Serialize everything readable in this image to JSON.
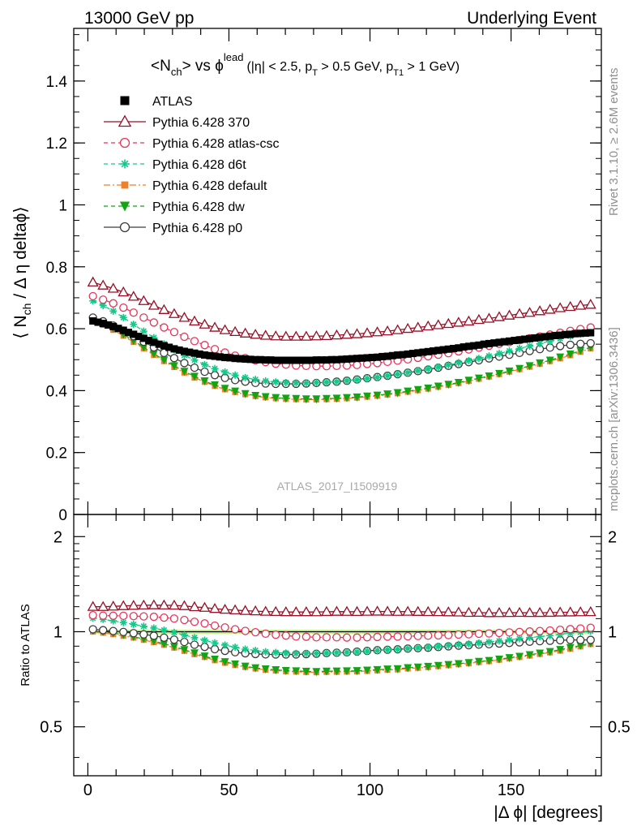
{
  "header": {
    "energy_label": "13000 GeV pp",
    "process_label": "Underlying Event"
  },
  "side_labels": {
    "rivet": "Rivet 3.1.10, ≥ 2.6M events",
    "mcplots": "mcplots.cern.ch [arXiv:1306.3436]"
  },
  "plot_title": {
    "main": "<N",
    "main_sub": "ch",
    "vs": "> vs ϕ",
    "vs_sup": "lead",
    "cuts": "(|η| < 2.5, p",
    "cuts_sub1": "T",
    "cuts_mid": " > 0.5 GeV, p",
    "cuts_sub2": "T1",
    "cuts_end": " > 1 GeV)"
  },
  "watermark": "ATLAS_2017_I1509919",
  "colors": {
    "atlas": "#000000",
    "p370": "#990e24",
    "atlas_csc": "#e8335a",
    "d6t": "#13c98a",
    "default": "#f07f2a",
    "dw": "#12a513",
    "p0": "#3c3c3c",
    "band": "#c6f58f"
  },
  "chart_data": [
    {
      "type": "scatter",
      "panel": "main",
      "ylabel": "⟨ N_ch / Δη deltaϕ⟩",
      "xlim": [
        -5,
        182
      ],
      "ylim": [
        0,
        1.57
      ],
      "yticks": [
        0,
        0.2,
        0.4,
        0.6,
        0.8,
        1,
        1.2,
        1.4
      ],
      "ytick_labels": [
        "0",
        "0.2",
        "0.4",
        "0.6",
        "0.8",
        "1",
        "1.2",
        "1.4"
      ],
      "legend_position": "top-left",
      "x_model": [
        1.8,
        5.4,
        9.0,
        12.6,
        16.2,
        19.8,
        23.4,
        27.0,
        30.6,
        34.2,
        37.8,
        41.4,
        45.0,
        48.6,
        52.2,
        55.8,
        59.4,
        63.0,
        66.6,
        70.2,
        73.8,
        77.4,
        81.0,
        84.6,
        88.2,
        91.8,
        95.4,
        99.0,
        102.6,
        106.2,
        109.8,
        113.4,
        117.0,
        120.6,
        124.2,
        127.8,
        131.4,
        135.0,
        138.6,
        142.2,
        145.8,
        149.4,
        153.0,
        156.6,
        160.2,
        163.8,
        167.4,
        171.0,
        174.6,
        178.2
      ],
      "series": [
        {
          "name": "ATLAS",
          "key": "atlas",
          "marker": "square",
          "x": [
            1.8,
            3.6,
            5.4,
            7.2,
            9.0,
            10.8,
            12.6,
            14.4,
            16.2,
            18.0,
            19.8,
            21.6,
            23.4,
            25.2,
            27.0,
            28.8,
            30.6,
            32.4,
            34.2,
            36.0,
            37.8,
            39.6,
            41.4,
            43.2,
            45.0,
            46.8,
            48.6,
            50.4,
            52.2,
            54.0,
            55.8,
            57.6,
            59.4,
            61.2,
            63.0,
            64.8,
            66.6,
            68.4,
            70.2,
            72.0,
            73.8,
            75.6,
            77.4,
            79.2,
            81.0,
            82.8,
            84.6,
            86.4,
            88.2,
            90.0,
            91.8,
            93.6,
            95.4,
            97.2,
            99.0,
            100.8,
            102.6,
            104.4,
            106.2,
            108.0,
            109.8,
            111.6,
            113.4,
            115.2,
            117.0,
            118.8,
            120.6,
            122.4,
            124.2,
            126.0,
            127.8,
            129.6,
            131.4,
            133.2,
            135.0,
            136.8,
            138.6,
            140.4,
            142.2,
            144.0,
            145.8,
            147.6,
            149.4,
            151.2,
            153.0,
            154.8,
            156.6,
            158.4,
            160.2,
            162.0,
            163.8,
            165.6,
            167.4,
            169.2,
            171.0,
            172.8,
            174.6,
            176.4,
            178.2
          ],
          "y": [
            0.625,
            0.621,
            0.617,
            0.612,
            0.607,
            0.601,
            0.595,
            0.588,
            0.582,
            0.575,
            0.569,
            0.562,
            0.556,
            0.55,
            0.545,
            0.54,
            0.535,
            0.531,
            0.527,
            0.524,
            0.521,
            0.518,
            0.515,
            0.513,
            0.511,
            0.509,
            0.507,
            0.506,
            0.504,
            0.503,
            0.502,
            0.501,
            0.5,
            0.5,
            0.499,
            0.499,
            0.498,
            0.498,
            0.498,
            0.498,
            0.498,
            0.498,
            0.498,
            0.498,
            0.499,
            0.499,
            0.499,
            0.5,
            0.5,
            0.501,
            0.502,
            0.503,
            0.504,
            0.505,
            0.506,
            0.507,
            0.508,
            0.51,
            0.511,
            0.513,
            0.515,
            0.516,
            0.518,
            0.52,
            0.522,
            0.524,
            0.526,
            0.528,
            0.53,
            0.532,
            0.534,
            0.536,
            0.538,
            0.541,
            0.543,
            0.545,
            0.547,
            0.55,
            0.552,
            0.554,
            0.556,
            0.558,
            0.56,
            0.562,
            0.564,
            0.566,
            0.568,
            0.57,
            0.572,
            0.574,
            0.576,
            0.578,
            0.579,
            0.581,
            0.582,
            0.584,
            0.585,
            0.586,
            0.587
          ]
        },
        {
          "name": "Pythia 6.428 370",
          "key": "p370",
          "marker": "open-triangle",
          "y": [
            0.75,
            0.74,
            0.73,
            0.718,
            0.704,
            0.69,
            0.675,
            0.661,
            0.648,
            0.636,
            0.624,
            0.614,
            0.604,
            0.596,
            0.59,
            0.585,
            0.581,
            0.578,
            0.576,
            0.575,
            0.575,
            0.575,
            0.576,
            0.577,
            0.579,
            0.581,
            0.583,
            0.586,
            0.589,
            0.592,
            0.596,
            0.6,
            0.604,
            0.608,
            0.612,
            0.616,
            0.62,
            0.624,
            0.629,
            0.633,
            0.638,
            0.643,
            0.648,
            0.652,
            0.657,
            0.662,
            0.667,
            0.671,
            0.675,
            0.678
          ]
        },
        {
          "name": "Pythia 6.428 atlas-csc",
          "key": "atlas_csc",
          "marker": "open-circle",
          "y": [
            0.705,
            0.694,
            0.682,
            0.668,
            0.652,
            0.636,
            0.62,
            0.604,
            0.589,
            0.574,
            0.56,
            0.547,
            0.534,
            0.523,
            0.513,
            0.505,
            0.498,
            0.492,
            0.487,
            0.484,
            0.481,
            0.48,
            0.479,
            0.479,
            0.48,
            0.481,
            0.483,
            0.486,
            0.489,
            0.493,
            0.497,
            0.501,
            0.506,
            0.511,
            0.516,
            0.521,
            0.527,
            0.533,
            0.539,
            0.545,
            0.551,
            0.557,
            0.563,
            0.569,
            0.575,
            0.581,
            0.587,
            0.593,
            0.599,
            0.604
          ]
        },
        {
          "name": "Pythia 6.428 d6t",
          "key": "d6t",
          "marker": "star",
          "y": [
            0.69,
            0.675,
            0.657,
            0.636,
            0.614,
            0.592,
            0.571,
            0.551,
            0.532,
            0.514,
            0.499,
            0.484,
            0.471,
            0.46,
            0.45,
            0.442,
            0.436,
            0.431,
            0.428,
            0.426,
            0.425,
            0.425,
            0.426,
            0.427,
            0.429,
            0.432,
            0.435,
            0.439,
            0.443,
            0.448,
            0.453,
            0.458,
            0.464,
            0.47,
            0.476,
            0.483,
            0.49,
            0.497,
            0.504,
            0.512,
            0.52,
            0.528,
            0.536,
            0.544,
            0.552,
            0.56,
            0.568,
            0.576,
            0.583,
            0.59
          ]
        },
        {
          "name": "Pythia 6.428 default",
          "key": "default",
          "marker": "square-small",
          "y": [
            0.625,
            0.612,
            0.596,
            0.577,
            0.557,
            0.536,
            0.515,
            0.495,
            0.476,
            0.458,
            0.442,
            0.428,
            0.415,
            0.404,
            0.395,
            0.388,
            0.382,
            0.378,
            0.375,
            0.373,
            0.372,
            0.371,
            0.371,
            0.372,
            0.373,
            0.375,
            0.377,
            0.38,
            0.383,
            0.387,
            0.391,
            0.396,
            0.401,
            0.406,
            0.412,
            0.418,
            0.424,
            0.431,
            0.438,
            0.445,
            0.453,
            0.461,
            0.469,
            0.477,
            0.486,
            0.495,
            0.504,
            0.514,
            0.525,
            0.536
          ]
        },
        {
          "name": "Pythia 6.428 dw",
          "key": "dw",
          "marker": "down-triangle",
          "y": [
            0.63,
            0.617,
            0.601,
            0.582,
            0.561,
            0.54,
            0.519,
            0.499,
            0.48,
            0.462,
            0.446,
            0.431,
            0.418,
            0.407,
            0.398,
            0.39,
            0.384,
            0.38,
            0.377,
            0.375,
            0.374,
            0.373,
            0.373,
            0.374,
            0.375,
            0.377,
            0.379,
            0.382,
            0.385,
            0.389,
            0.393,
            0.398,
            0.403,
            0.408,
            0.414,
            0.42,
            0.426,
            0.433,
            0.44,
            0.447,
            0.455,
            0.463,
            0.471,
            0.48,
            0.489,
            0.498,
            0.508,
            0.518,
            0.529,
            0.54
          ]
        },
        {
          "name": "Pythia 6.428 p0",
          "key": "p0",
          "marker": "open-circle",
          "y": [
            0.636,
            0.624,
            0.61,
            0.594,
            0.576,
            0.558,
            0.54,
            0.522,
            0.505,
            0.489,
            0.474,
            0.461,
            0.45,
            0.441,
            0.434,
            0.429,
            0.425,
            0.423,
            0.422,
            0.422,
            0.422,
            0.423,
            0.425,
            0.427,
            0.429,
            0.432,
            0.436,
            0.44,
            0.444,
            0.448,
            0.453,
            0.458,
            0.463,
            0.468,
            0.474,
            0.48,
            0.486,
            0.492,
            0.498,
            0.504,
            0.51,
            0.516,
            0.522,
            0.528,
            0.534,
            0.539,
            0.544,
            0.548,
            0.551,
            0.553
          ]
        }
      ]
    },
    {
      "type": "scatter",
      "panel": "ratio",
      "xlabel": "|Δ ϕ| [degrees]",
      "ylabel": "Ratio to ATLAS",
      "xlim": [
        -5,
        182
      ],
      "ylim": [
        0.35,
        2.35
      ],
      "log_y": true,
      "xticks": [
        0,
        50,
        100,
        150
      ],
      "xtick_labels": [
        "0",
        "50",
        "100",
        "150"
      ],
      "yticks": [
        0.5,
        1,
        2
      ],
      "ytick_labels": [
        "0.5",
        "1",
        "2"
      ]
    }
  ]
}
